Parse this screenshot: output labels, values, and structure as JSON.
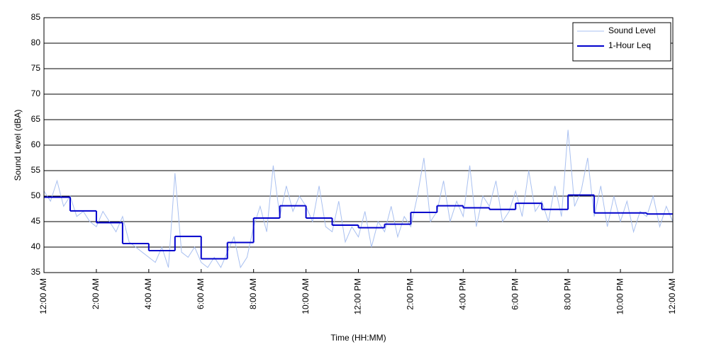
{
  "chart_data": {
    "type": "line",
    "xlabel": "Time (HH:MM)",
    "ylabel": "Sound Level (dBA)",
    "xlim": [
      0,
      24
    ],
    "ylim": [
      35,
      85
    ],
    "yticks": [
      35,
      40,
      45,
      50,
      55,
      60,
      65,
      70,
      75,
      80,
      85
    ],
    "xticks": [
      {
        "value": 0,
        "label": "12:00 AM"
      },
      {
        "value": 2,
        "label": "2:00 AM"
      },
      {
        "value": 4,
        "label": "4:00 AM"
      },
      {
        "value": 6,
        "label": "6:00 AM"
      },
      {
        "value": 8,
        "label": "8:00 AM"
      },
      {
        "value": 10,
        "label": "10:00 AM"
      },
      {
        "value": 12,
        "label": "12:00 PM"
      },
      {
        "value": 14,
        "label": "2:00 PM"
      },
      {
        "value": 16,
        "label": "4:00 PM"
      },
      {
        "value": 18,
        "label": "6:00 PM"
      },
      {
        "value": 20,
        "label": "8:00 PM"
      },
      {
        "value": 22,
        "label": "10:00 PM"
      },
      {
        "value": 24,
        "label": "12:00 AM"
      }
    ],
    "grid": true,
    "legend": "upper right",
    "series": [
      {
        "name": "Sound Level",
        "color": "#a9c0f0",
        "style": "line",
        "x": [
          0,
          0.25,
          0.5,
          0.75,
          1,
          1.25,
          1.5,
          1.75,
          2,
          2.25,
          2.5,
          2.75,
          3,
          3.25,
          3.5,
          3.75,
          4,
          4.25,
          4.5,
          4.75,
          5,
          5.25,
          5.5,
          5.75,
          6,
          6.25,
          6.5,
          6.75,
          7,
          7.25,
          7.5,
          7.75,
          8,
          8.25,
          8.5,
          8.75,
          9,
          9.25,
          9.5,
          9.75,
          10,
          10.25,
          10.5,
          10.75,
          11,
          11.25,
          11.5,
          11.75,
          12,
          12.25,
          12.5,
          12.75,
          13,
          13.25,
          13.5,
          13.75,
          14,
          14.25,
          14.5,
          14.75,
          15,
          15.25,
          15.5,
          15.75,
          16,
          16.25,
          16.5,
          16.75,
          17,
          17.25,
          17.5,
          17.75,
          18,
          18.25,
          18.5,
          18.75,
          19,
          19.25,
          19.5,
          19.75,
          20,
          20.25,
          20.5,
          20.75,
          21,
          21.25,
          21.5,
          21.75,
          22,
          22.25,
          22.5,
          22.75,
          23,
          23.25,
          23.5,
          23.75,
          24
        ],
        "values": [
          51,
          49,
          53,
          48,
          50,
          46,
          47,
          45,
          44,
          47,
          45,
          43,
          46,
          41,
          40,
          39,
          38,
          37,
          40,
          36,
          54.5,
          39,
          38,
          40,
          37,
          36,
          38,
          36,
          39,
          42,
          36,
          38,
          44,
          48,
          43,
          56,
          46,
          52,
          47,
          50,
          48,
          45,
          52,
          44,
          43,
          49,
          41,
          44,
          42,
          47,
          40,
          45,
          43,
          48,
          42,
          46,
          44,
          50,
          57.5,
          45,
          47,
          53,
          45,
          49,
          46,
          56,
          44,
          50,
          48,
          53,
          45,
          47,
          51,
          46,
          55,
          47,
          49,
          45,
          52,
          46,
          63,
          48,
          51,
          57.5,
          46,
          52,
          44,
          50,
          45,
          49,
          43,
          47,
          46,
          50,
          44,
          48,
          45
        ]
      },
      {
        "name": "1-Hour Leq",
        "color": "#0000cc",
        "style": "step",
        "x": [
          0,
          1,
          2,
          3,
          4,
          5,
          6,
          7,
          8,
          9,
          10,
          11,
          12,
          13,
          14,
          15,
          16,
          17,
          18,
          19,
          20,
          21,
          22,
          23
        ],
        "values": [
          49.8,
          47.1,
          44.8,
          40.7,
          39.3,
          42.1,
          37.7,
          40.9,
          45.7,
          48.1,
          45.7,
          44.3,
          43.8,
          44.5,
          46.8,
          48.1,
          47.7,
          47.4,
          48.6,
          47.4,
          50.2,
          46.7,
          46.7,
          46.5
        ]
      }
    ]
  }
}
